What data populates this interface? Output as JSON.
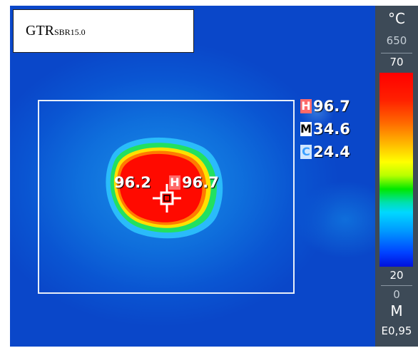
{
  "label_box": {
    "main": "GTR",
    "sub": "SBR15.0"
  },
  "readouts": {
    "max": {
      "tag": "H",
      "value": "96.7"
    },
    "mean": {
      "tag": "M",
      "value": "34.6"
    },
    "min": {
      "tag": "C",
      "value": "24.4"
    }
  },
  "spot": {
    "value": "96.2",
    "tag": "H",
    "hot_value": "96.7"
  },
  "scale": {
    "unit": "°C",
    "range_max": "650",
    "top": "70",
    "bottom": "20",
    "range_min": "0",
    "mode": "M",
    "emissivity": "E0,95"
  },
  "colors": {
    "background": "#0a47c9",
    "hot": "#ff0000",
    "warm": "#ffff00",
    "mid": "#00e800",
    "cool": "#00d8ff"
  }
}
